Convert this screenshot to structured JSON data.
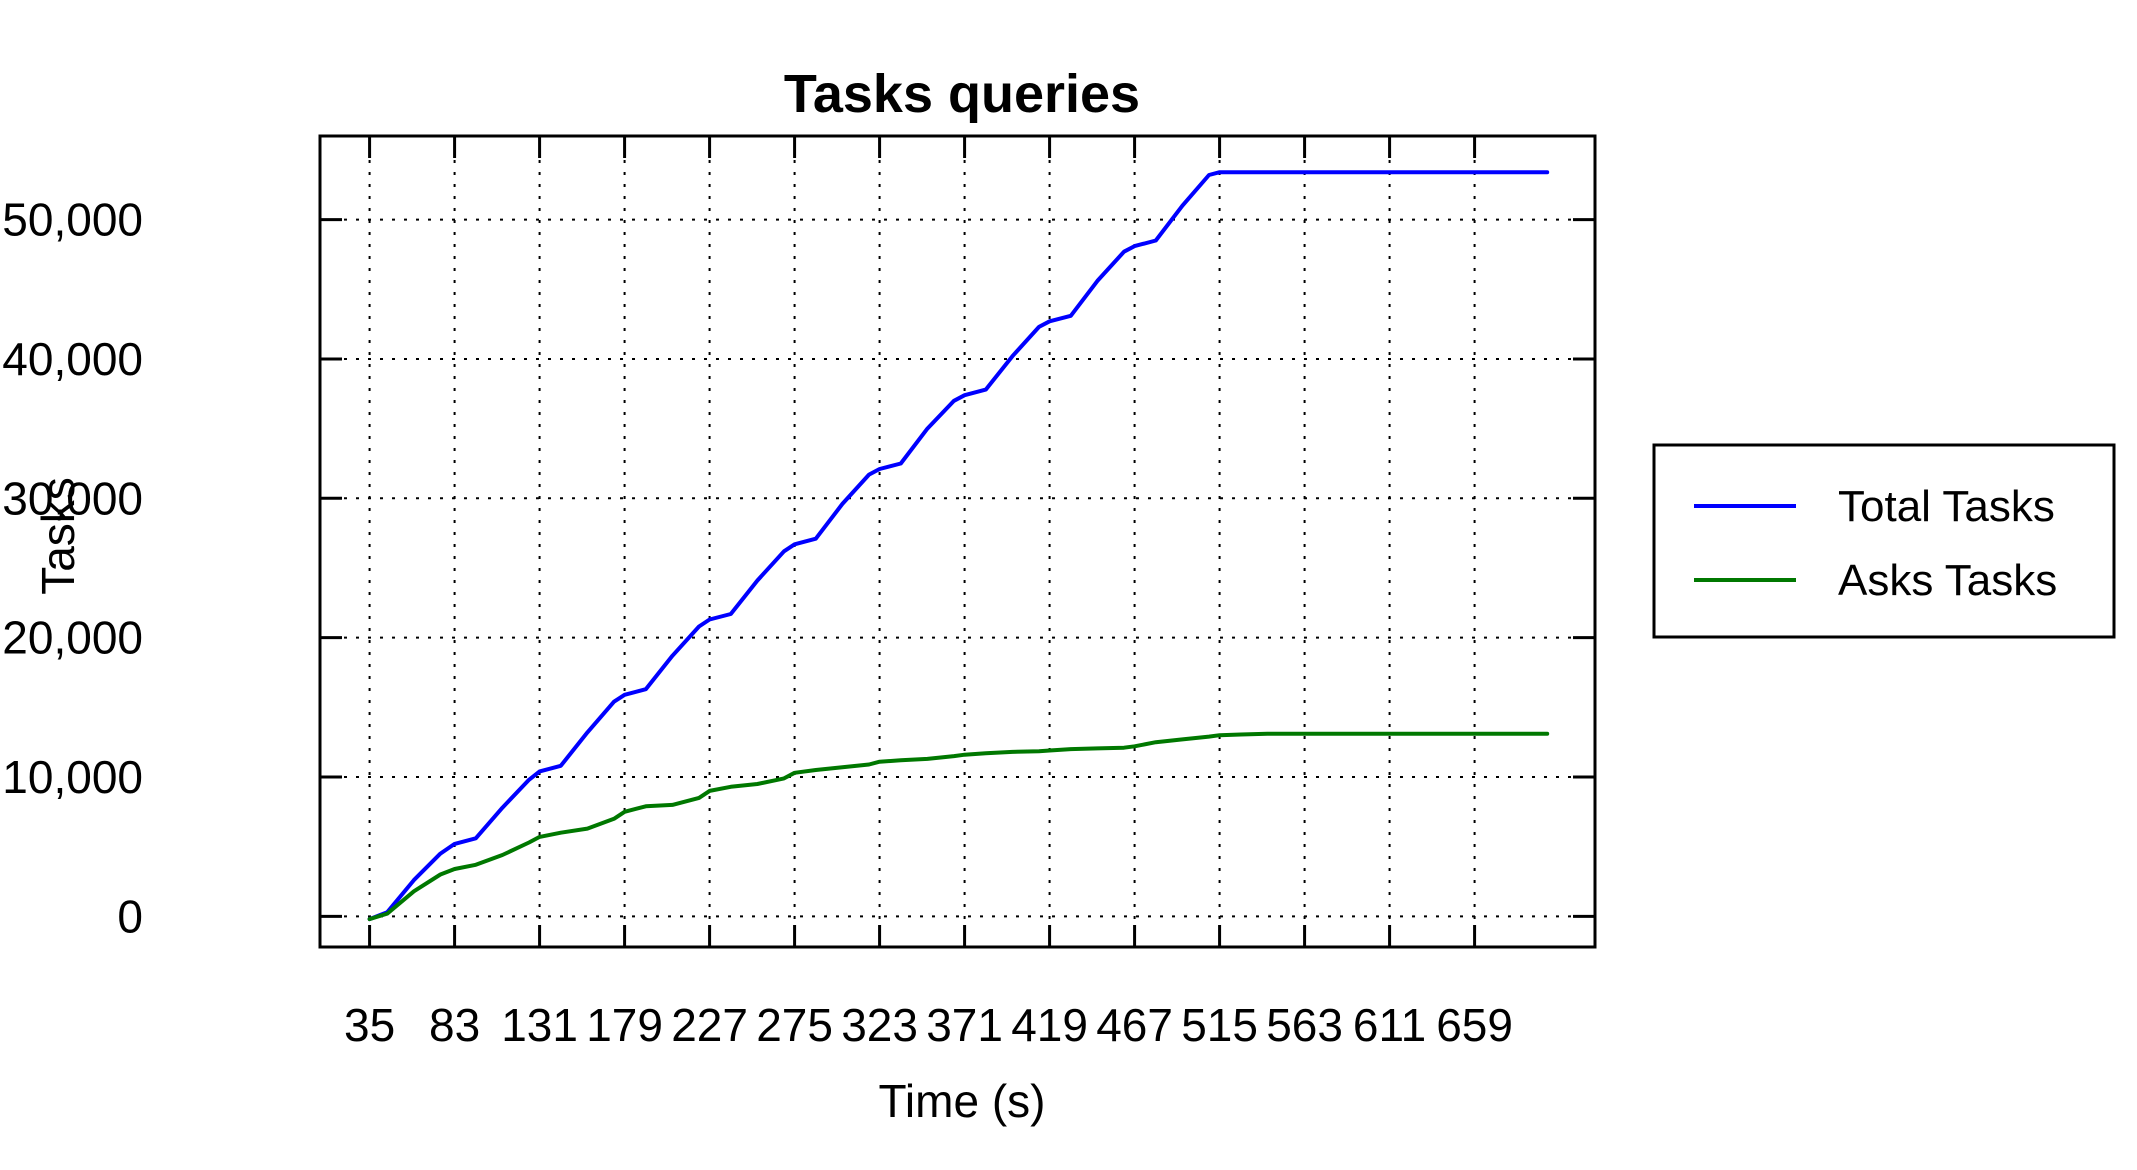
{
  "chart_data": {
    "type": "line",
    "title": "Tasks queries",
    "xlabel": "Time (s)",
    "ylabel": "Tasks",
    "x_tick_labels": [
      "35",
      "83",
      "131",
      "179",
      "227",
      "275",
      "323",
      "371",
      "419",
      "467",
      "515",
      "563",
      "611",
      "659"
    ],
    "x_ticks": [
      35,
      83,
      131,
      179,
      227,
      275,
      323,
      371,
      419,
      467,
      515,
      563,
      611,
      659
    ],
    "xlim": [
      7,
      727
    ],
    "y_tick_labels": [
      "0",
      "10,000",
      "20,000",
      "30,000",
      "40,000",
      "50,000"
    ],
    "y_ticks": [
      0,
      10000,
      20000,
      30000,
      40000,
      50000
    ],
    "ylim": [
      -2200,
      56000
    ],
    "grid": true,
    "legend_position": "right",
    "series": [
      {
        "name": "Total Tasks",
        "color": "#0000ff",
        "x": [
          35,
          45,
          60,
          75,
          83,
          95,
          110,
          125,
          131,
          143,
          158,
          173,
          179,
          191,
          206,
          221,
          227,
          239,
          254,
          269,
          275,
          287,
          302,
          317,
          323,
          335,
          350,
          365,
          371,
          383,
          398,
          413,
          419,
          431,
          446,
          461,
          467,
          479,
          494,
          509,
          515,
          527,
          542,
          557,
          563,
          580,
          595,
          612,
          625,
          660,
          700
        ],
        "y": [
          -200,
          300,
          2600,
          4500,
          5200,
          5600,
          7800,
          9800,
          10400,
          10800,
          13200,
          15400,
          15900,
          16300,
          18700,
          20800,
          21300,
          21700,
          24100,
          26200,
          26700,
          27100,
          29600,
          31700,
          32100,
          32500,
          35000,
          37000,
          37400,
          37800,
          40200,
          42300,
          42700,
          43100,
          45600,
          47700,
          48100,
          48500,
          51000,
          53200,
          53400,
          53400,
          53400,
          53400,
          53400,
          53400,
          53400,
          53400,
          53400,
          53400,
          53400
        ]
      },
      {
        "name": "Asks Tasks",
        "color": "#007800",
        "x": [
          35,
          45,
          60,
          75,
          83,
          95,
          110,
          125,
          131,
          143,
          158,
          173,
          179,
          191,
          206,
          221,
          227,
          239,
          254,
          269,
          275,
          287,
          302,
          317,
          323,
          335,
          350,
          365,
          371,
          383,
          398,
          413,
          419,
          431,
          446,
          461,
          467,
          479,
          494,
          509,
          515,
          527,
          542,
          557,
          563,
          580,
          600,
          620,
          640,
          660,
          700
        ],
        "y": [
          -200,
          200,
          1800,
          3000,
          3400,
          3700,
          4400,
          5300,
          5700,
          6000,
          6300,
          7000,
          7500,
          7900,
          8000,
          8500,
          9000,
          9300,
          9500,
          9900,
          10300,
          10500,
          10700,
          10900,
          11100,
          11200,
          11300,
          11500,
          11600,
          11700,
          11800,
          11850,
          11900,
          12000,
          12050,
          12100,
          12200,
          12500,
          12700,
          12900,
          13000,
          13050,
          13100,
          13100,
          13100,
          13100,
          13100,
          13100,
          13100,
          13100,
          13100
        ]
      }
    ]
  }
}
